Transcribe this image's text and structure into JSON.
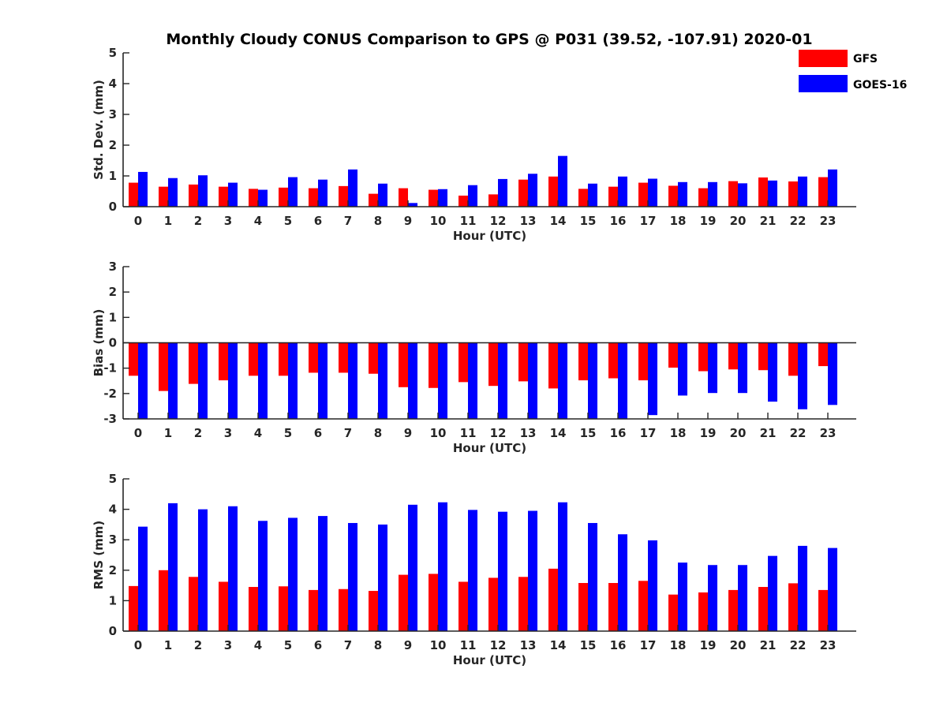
{
  "title": "Monthly Cloudy CONUS Comparison to GPS @ P031 (39.52, -107.91) 2020-01",
  "legend": [
    {
      "label": "GFS",
      "color": "#ff0000"
    },
    {
      "label": "GOES-16",
      "color": "#0000ff"
    }
  ],
  "chart_data": [
    {
      "type": "bar",
      "name": "stddev",
      "xlabel": "Hour (UTC)",
      "ylabel": "Std. Dev. (mm)",
      "ylim": [
        0,
        5
      ],
      "yticks": [
        0,
        1,
        2,
        3,
        4,
        5
      ],
      "categories": [
        "0",
        "1",
        "2",
        "3",
        "4",
        "5",
        "6",
        "7",
        "8",
        "9",
        "10",
        "11",
        "12",
        "13",
        "14",
        "15",
        "16",
        "17",
        "18",
        "19",
        "20",
        "21",
        "22",
        "23"
      ],
      "series": [
        {
          "name": "GFS",
          "color": "#ff0000",
          "values": [
            0.78,
            0.65,
            0.72,
            0.65,
            0.58,
            0.62,
            0.6,
            0.67,
            0.42,
            0.6,
            0.55,
            0.36,
            0.4,
            0.88,
            0.98,
            0.58,
            0.65,
            0.78,
            0.68,
            0.6,
            0.83,
            0.95,
            0.82,
            0.96
          ]
        },
        {
          "name": "GOES-16",
          "color": "#0000ff",
          "values": [
            1.13,
            0.93,
            1.02,
            0.78,
            0.55,
            0.96,
            0.88,
            1.21,
            0.75,
            0.12,
            0.57,
            0.7,
            0.9,
            1.07,
            1.65,
            0.75,
            0.98,
            0.91,
            0.8,
            0.8,
            0.76,
            0.85,
            0.98,
            1.21
          ]
        }
      ]
    },
    {
      "type": "bar",
      "name": "bias",
      "xlabel": "Hour (UTC)",
      "ylabel": "Bias (mm)",
      "ylim": [
        -3,
        3
      ],
      "yticks": [
        -3,
        -2,
        -1,
        0,
        1,
        2,
        3
      ],
      "categories": [
        "0",
        "1",
        "2",
        "3",
        "4",
        "5",
        "6",
        "7",
        "8",
        "9",
        "10",
        "11",
        "12",
        "13",
        "14",
        "15",
        "16",
        "17",
        "18",
        "19",
        "20",
        "21",
        "22",
        "23"
      ],
      "series": [
        {
          "name": "GFS",
          "color": "#ff0000",
          "values": [
            -1.3,
            -1.9,
            -1.62,
            -1.48,
            -1.3,
            -1.3,
            -1.18,
            -1.18,
            -1.22,
            -1.75,
            -1.78,
            -1.55,
            -1.7,
            -1.52,
            -1.8,
            -1.48,
            -1.4,
            -1.48,
            -0.98,
            -1.12,
            -1.05,
            -1.08,
            -1.3,
            -0.92
          ]
        },
        {
          "name": "GOES-16",
          "color": "#0000ff",
          "values": [
            -3.0,
            -3.0,
            -3.0,
            -3.0,
            -3.0,
            -3.0,
            -3.0,
            -3.0,
            -3.0,
            -3.0,
            -3.0,
            -3.0,
            -3.0,
            -3.0,
            -3.0,
            -3.0,
            -3.0,
            -2.85,
            -2.08,
            -1.98,
            -1.98,
            -2.32,
            -2.62,
            -2.45
          ]
        }
      ]
    },
    {
      "type": "bar",
      "name": "rms",
      "xlabel": "Hour (UTC)",
      "ylabel": "RMS (mm)",
      "ylim": [
        0,
        5
      ],
      "yticks": [
        0,
        1,
        2,
        3,
        4,
        5
      ],
      "categories": [
        "0",
        "1",
        "2",
        "3",
        "4",
        "5",
        "6",
        "7",
        "8",
        "9",
        "10",
        "11",
        "12",
        "13",
        "14",
        "15",
        "16",
        "17",
        "18",
        "19",
        "20",
        "21",
        "22",
        "23"
      ],
      "series": [
        {
          "name": "GFS",
          "color": "#ff0000",
          "values": [
            1.48,
            2.0,
            1.78,
            1.62,
            1.45,
            1.47,
            1.35,
            1.38,
            1.32,
            1.85,
            1.88,
            1.62,
            1.75,
            1.78,
            2.05,
            1.58,
            1.58,
            1.65,
            1.2,
            1.27,
            1.35,
            1.45,
            1.57,
            1.35
          ]
        },
        {
          "name": "GOES-16",
          "color": "#0000ff",
          "values": [
            3.43,
            4.2,
            4.0,
            4.1,
            3.62,
            3.72,
            3.78,
            3.55,
            3.5,
            4.15,
            4.23,
            3.98,
            3.92,
            3.95,
            4.23,
            3.55,
            3.18,
            2.98,
            2.25,
            2.17,
            2.17,
            2.47,
            2.8,
            2.73
          ]
        }
      ]
    }
  ]
}
